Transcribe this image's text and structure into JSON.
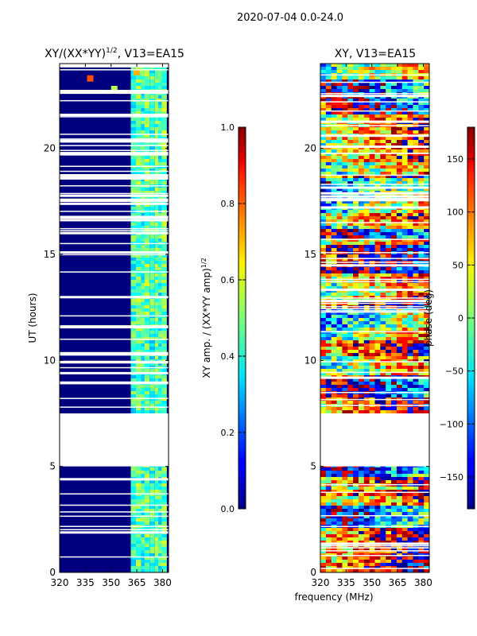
{
  "suptitle": "2020-07-04 0.0-24.0",
  "shared_xlabel": "frequency (MHz)",
  "colors": {
    "background_fill": "#00007f",
    "gap_fill": "#ffffff",
    "colormap": "jet"
  },
  "chart_data": [
    {
      "type": "heatmap",
      "title_main": "XY/(XX*YY)",
      "title_sup": "1/2",
      "title_tail": ", V13=EA15",
      "ylabel": "UT (hours)",
      "x_ticks": [
        320,
        335,
        350,
        365,
        380
      ],
      "xlim": [
        320,
        383.5
      ],
      "y_ticks": [
        0,
        5,
        10,
        15,
        20
      ],
      "ylim": [
        0,
        24
      ],
      "colorbar": {
        "label": "XY amp. / (XX*YY amp)",
        "label_sup": "1/2",
        "ticks": [
          0.0,
          0.2,
          0.4,
          0.6,
          0.8,
          1.0
        ],
        "tick_labels": [
          "0.0",
          "0.2",
          "0.4",
          "0.6",
          "0.8",
          "1.0"
        ],
        "range": [
          0,
          1
        ]
      },
      "data_gap_hours": [
        5.0,
        7.5
      ],
      "band_columns_mhz": [
        363,
        366,
        369,
        371,
        374,
        377,
        379,
        381
      ],
      "background_value": 0.05,
      "band_value_range": [
        0.3,
        0.55
      ]
    },
    {
      "type": "heatmap",
      "title": "XY, V13=EA15",
      "x_ticks": [
        320,
        335,
        350,
        365,
        380
      ],
      "xlim": [
        320,
        383.5
      ],
      "y_ticks": [
        0,
        5,
        10,
        15,
        20
      ],
      "ylim": [
        0,
        24
      ],
      "colorbar": {
        "label": "phase (deg)",
        "ticks": [
          -150,
          -100,
          -50,
          0,
          50,
          100,
          150
        ],
        "tick_labels": [
          "−150",
          "−100",
          "−50",
          "0",
          "50",
          "100",
          "150"
        ],
        "range": [
          -180,
          180
        ]
      },
      "data_gap_hours": [
        5.0,
        7.5
      ]
    }
  ]
}
